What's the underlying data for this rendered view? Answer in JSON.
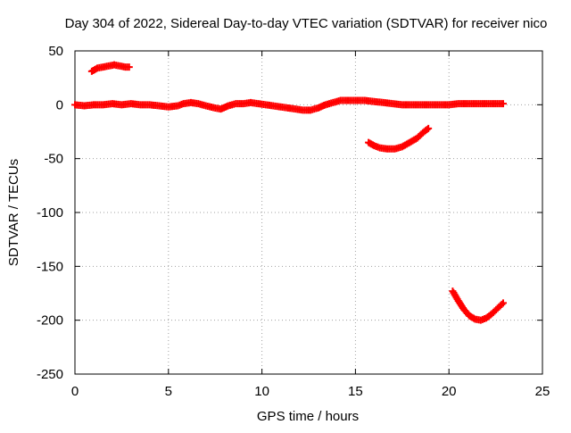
{
  "chart_data": {
    "type": "scatter",
    "title": "Day 304 of 2022, Sidereal Day-to-day VTEC variation (SDTVAR) for receiver nico",
    "xlabel": "GPS time / hours",
    "ylabel": "SDTVAR / TECUs",
    "xlim": [
      0,
      25
    ],
    "ylim": [
      -250,
      50
    ],
    "xticks": [
      0,
      5,
      10,
      15,
      20,
      25
    ],
    "yticks": [
      -250,
      -200,
      -150,
      -100,
      -50,
      0,
      50
    ],
    "grid": true,
    "legend": "none",
    "marker": "plus",
    "series_color": "#ff0000",
    "series": [
      {
        "values": [
          [
            0.0,
            0
          ],
          [
            0.5,
            -1
          ],
          [
            1.0,
            0
          ],
          [
            1.5,
            0
          ],
          [
            2.0,
            1
          ],
          [
            2.5,
            0
          ],
          [
            3.0,
            1
          ],
          [
            3.5,
            0
          ],
          [
            4.0,
            0
          ],
          [
            4.5,
            -1
          ],
          [
            5.0,
            -2
          ],
          [
            5.5,
            -1
          ],
          [
            5.8,
            1
          ],
          [
            6.2,
            2
          ],
          [
            6.6,
            1
          ],
          [
            7.0,
            -1
          ],
          [
            7.5,
            -3
          ],
          [
            7.8,
            -4
          ],
          [
            8.2,
            -1
          ],
          [
            8.6,
            1
          ],
          [
            9.0,
            1
          ],
          [
            9.4,
            2
          ],
          [
            9.8,
            1
          ],
          [
            10.2,
            0
          ],
          [
            10.6,
            -1
          ],
          [
            11.0,
            -2
          ],
          [
            11.4,
            -3
          ],
          [
            11.8,
            -4
          ],
          [
            12.2,
            -5
          ],
          [
            12.6,
            -5
          ],
          [
            13.0,
            -3
          ],
          [
            13.4,
            0
          ],
          [
            13.8,
            2
          ],
          [
            14.2,
            4
          ],
          [
            14.6,
            4
          ],
          [
            15.0,
            4
          ],
          [
            15.5,
            4
          ],
          [
            16.0,
            3
          ],
          [
            16.5,
            2
          ],
          [
            17.0,
            1
          ],
          [
            17.5,
            0
          ],
          [
            18.0,
            0
          ],
          [
            18.5,
            0
          ],
          [
            19.0,
            0
          ],
          [
            19.5,
            0
          ],
          [
            20.0,
            0
          ],
          [
            20.5,
            1
          ],
          [
            21.0,
            1
          ],
          [
            21.5,
            1
          ],
          [
            22.0,
            1
          ],
          [
            22.5,
            1
          ],
          [
            22.9,
            1
          ]
        ]
      },
      {
        "values": [
          [
            0.9,
            31
          ],
          [
            1.2,
            34
          ],
          [
            1.5,
            35
          ],
          [
            1.8,
            36
          ],
          [
            2.1,
            37
          ],
          [
            2.4,
            36
          ],
          [
            2.7,
            35
          ],
          [
            2.9,
            35
          ]
        ]
      },
      {
        "values": [
          [
            15.7,
            -35
          ],
          [
            16.0,
            -38
          ],
          [
            16.3,
            -40
          ],
          [
            16.7,
            -41
          ],
          [
            17.1,
            -41
          ],
          [
            17.5,
            -39
          ],
          [
            17.9,
            -35
          ],
          [
            18.3,
            -31
          ],
          [
            18.6,
            -26
          ],
          [
            18.9,
            -22
          ]
        ]
      },
      {
        "values": [
          [
            20.2,
            -173
          ],
          [
            20.5,
            -182
          ],
          [
            20.8,
            -190
          ],
          [
            21.1,
            -196
          ],
          [
            21.4,
            -199
          ],
          [
            21.7,
            -200
          ],
          [
            22.0,
            -198
          ],
          [
            22.3,
            -194
          ],
          [
            22.6,
            -189
          ],
          [
            22.9,
            -184
          ]
        ]
      }
    ]
  }
}
